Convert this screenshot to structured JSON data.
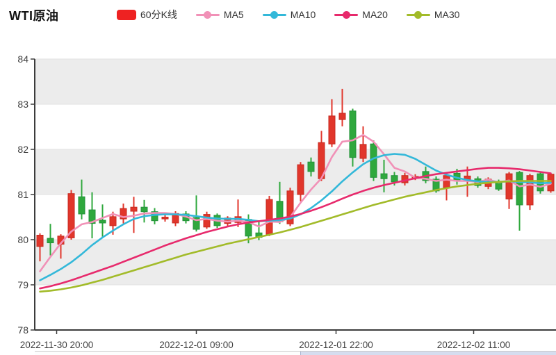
{
  "chart_data": {
    "type": "candlestick",
    "title": "WTI原油",
    "legend": [
      {
        "label": "60分K线",
        "color": "#ee2222",
        "shape": "rect"
      },
      {
        "label": "MA5",
        "color": "#f191b7",
        "shape": "line"
      },
      {
        "label": "MA10",
        "color": "#33b8d9",
        "shape": "line"
      },
      {
        "label": "MA20",
        "color": "#e72a6c",
        "shape": "line"
      },
      {
        "label": "MA30",
        "color": "#a2bb29",
        "shape": "line"
      }
    ],
    "colors": {
      "up_fill": "#e1362b",
      "up_border": "#c62a20",
      "down_fill": "#2fa83d",
      "down_border": "#23923a",
      "band_gray": "#ececec",
      "band_white": "#ffffff",
      "gridline": "#e2e2e2",
      "axis_line": "#3c3c3c",
      "axis_text": "#404040"
    },
    "y_axis": {
      "min": 78,
      "max": 84,
      "ticks": [
        84,
        83,
        82,
        81,
        80,
        79,
        78
      ]
    },
    "x_axis_labels": [
      "2022-11-30 20:00",
      "2022-12-01 09:00",
      "2022-12-01 22:00",
      "2022-12-02 11:00"
    ],
    "candles_format": [
      "open",
      "close",
      "low",
      "high"
    ],
    "candles": [
      [
        79.85,
        80.1,
        79.52,
        80.14
      ],
      [
        80.03,
        79.93,
        79.65,
        80.35
      ],
      [
        79.9,
        80.08,
        79.58,
        80.12
      ],
      [
        80.04,
        81.02,
        80.0,
        81.1
      ],
      [
        80.95,
        80.57,
        80.45,
        81.33
      ],
      [
        80.66,
        80.36,
        80.03,
        81.05
      ],
      [
        80.43,
        80.37,
        80.05,
        80.78
      ],
      [
        80.31,
        80.51,
        80.11,
        80.62
      ],
      [
        80.46,
        80.69,
        80.36,
        80.8
      ],
      [
        80.63,
        80.72,
        80.15,
        80.95
      ],
      [
        80.72,
        80.62,
        80.38,
        80.88
      ],
      [
        80.62,
        80.42,
        80.34,
        80.7
      ],
      [
        80.46,
        80.5,
        80.4,
        80.56
      ],
      [
        80.37,
        80.58,
        80.3,
        80.63
      ],
      [
        80.57,
        80.42,
        80.36,
        80.63
      ],
      [
        80.49,
        80.23,
        80.18,
        80.98
      ],
      [
        80.28,
        80.56,
        80.24,
        80.62
      ],
      [
        80.54,
        80.31,
        80.26,
        80.58
      ],
      [
        80.36,
        80.48,
        80.3,
        80.52
      ],
      [
        80.38,
        80.51,
        80.28,
        80.89
      ],
      [
        80.45,
        80.08,
        79.92,
        80.56
      ],
      [
        80.15,
        80.05,
        79.99,
        80.42
      ],
      [
        80.12,
        80.89,
        80.08,
        80.97
      ],
      [
        80.85,
        80.4,
        80.35,
        81.28
      ],
      [
        80.35,
        81.08,
        80.3,
        81.15
      ],
      [
        81.0,
        81.66,
        80.85,
        81.72
      ],
      [
        81.72,
        81.51,
        81.4,
        81.82
      ],
      [
        81.35,
        82.15,
        81.3,
        82.41
      ],
      [
        82.12,
        82.74,
        82.05,
        83.11
      ],
      [
        82.66,
        82.8,
        82.51,
        83.34
      ],
      [
        82.85,
        81.82,
        81.62,
        82.9
      ],
      [
        81.8,
        82.11,
        81.72,
        82.51
      ],
      [
        82.12,
        81.38,
        81.3,
        82.2
      ],
      [
        81.46,
        81.35,
        81.05,
        81.77
      ],
      [
        81.42,
        81.28,
        81.2,
        81.5
      ],
      [
        81.26,
        81.42,
        81.2,
        81.48
      ],
      [
        81.36,
        81.4,
        81.32,
        81.45
      ],
      [
        81.51,
        81.31,
        81.25,
        81.62
      ],
      [
        81.34,
        81.08,
        81.04,
        81.4
      ],
      [
        81.15,
        81.42,
        80.87,
        81.48
      ],
      [
        81.47,
        81.3,
        81.22,
        81.57
      ],
      [
        81.33,
        81.41,
        80.95,
        81.62
      ],
      [
        81.35,
        81.2,
        81.15,
        81.4
      ],
      [
        81.18,
        81.34,
        81.12,
        81.38
      ],
      [
        81.28,
        81.12,
        81.08,
        81.33
      ],
      [
        80.9,
        81.46,
        80.68,
        81.5
      ],
      [
        81.49,
        80.77,
        80.2,
        81.52
      ],
      [
        80.77,
        81.42,
        80.66,
        81.46
      ],
      [
        81.46,
        81.08,
        81.02,
        81.5
      ],
      [
        81.08,
        81.45,
        81.04,
        81.48
      ]
    ],
    "series": [
      {
        "name": "MA5",
        "color": "#f191b7",
        "values": [
          79.3,
          79.62,
          79.92,
          80.18,
          80.34,
          80.39,
          80.48,
          80.57,
          80.5,
          80.53,
          80.58,
          80.59,
          80.59,
          80.57,
          80.51,
          80.43,
          80.46,
          80.42,
          80.4,
          80.42,
          80.39,
          80.29,
          80.4,
          80.39,
          80.5,
          80.82,
          81.11,
          81.36,
          81.83,
          82.17,
          82.2,
          82.32,
          82.17,
          81.89,
          81.59,
          81.51,
          81.37,
          81.35,
          81.3,
          81.33,
          81.3,
          81.3,
          81.28,
          81.33,
          81.27,
          81.31,
          81.18,
          81.22,
          81.17,
          81.24
        ]
      },
      {
        "name": "MA10",
        "color": "#33b8d9",
        "values": [
          79.1,
          79.22,
          79.35,
          79.5,
          79.68,
          79.88,
          80.05,
          80.2,
          80.34,
          80.46,
          80.52,
          80.55,
          80.56,
          80.56,
          80.55,
          80.52,
          80.49,
          80.47,
          80.46,
          80.46,
          80.44,
          80.41,
          80.42,
          80.43,
          80.47,
          80.56,
          80.7,
          80.87,
          81.07,
          81.29,
          81.49,
          81.67,
          81.8,
          81.87,
          81.9,
          81.88,
          81.79,
          81.66,
          81.53,
          81.44,
          81.37,
          81.32,
          81.29,
          81.28,
          81.28,
          81.29,
          81.28,
          81.27,
          81.25,
          81.26
        ]
      },
      {
        "name": "MA20",
        "color": "#e72a6c",
        "values": [
          78.92,
          78.97,
          79.03,
          79.1,
          79.18,
          79.26,
          79.34,
          79.42,
          79.51,
          79.6,
          79.69,
          79.78,
          79.87,
          79.95,
          80.03,
          80.1,
          80.17,
          80.23,
          80.29,
          80.34,
          80.38,
          80.41,
          80.44,
          80.47,
          80.51,
          80.57,
          80.64,
          80.72,
          80.81,
          80.91,
          81.0,
          81.08,
          81.15,
          81.21,
          81.26,
          81.31,
          81.36,
          81.41,
          81.45,
          81.48,
          81.51,
          81.54,
          81.57,
          81.59,
          81.59,
          81.58,
          81.56,
          81.53,
          81.5,
          81.47
        ]
      },
      {
        "name": "MA30",
        "color": "#a2bb29",
        "values": [
          78.85,
          78.87,
          78.9,
          78.94,
          78.99,
          79.05,
          79.11,
          79.18,
          79.25,
          79.32,
          79.39,
          79.46,
          79.53,
          79.6,
          79.67,
          79.73,
          79.79,
          79.85,
          79.91,
          79.96,
          80.01,
          80.06,
          80.11,
          80.16,
          80.22,
          80.28,
          80.35,
          80.42,
          80.49,
          80.56,
          80.63,
          80.7,
          80.77,
          80.83,
          80.89,
          80.95,
          81.0,
          81.05,
          81.1,
          81.14,
          81.18,
          81.21,
          81.24,
          81.26,
          81.28,
          81.29,
          81.3,
          81.3,
          81.3,
          81.3
        ]
      }
    ],
    "layout_hints": {
      "grid_split_area": true,
      "legend_position": "top",
      "datazoom_slider": "bottom"
    }
  }
}
